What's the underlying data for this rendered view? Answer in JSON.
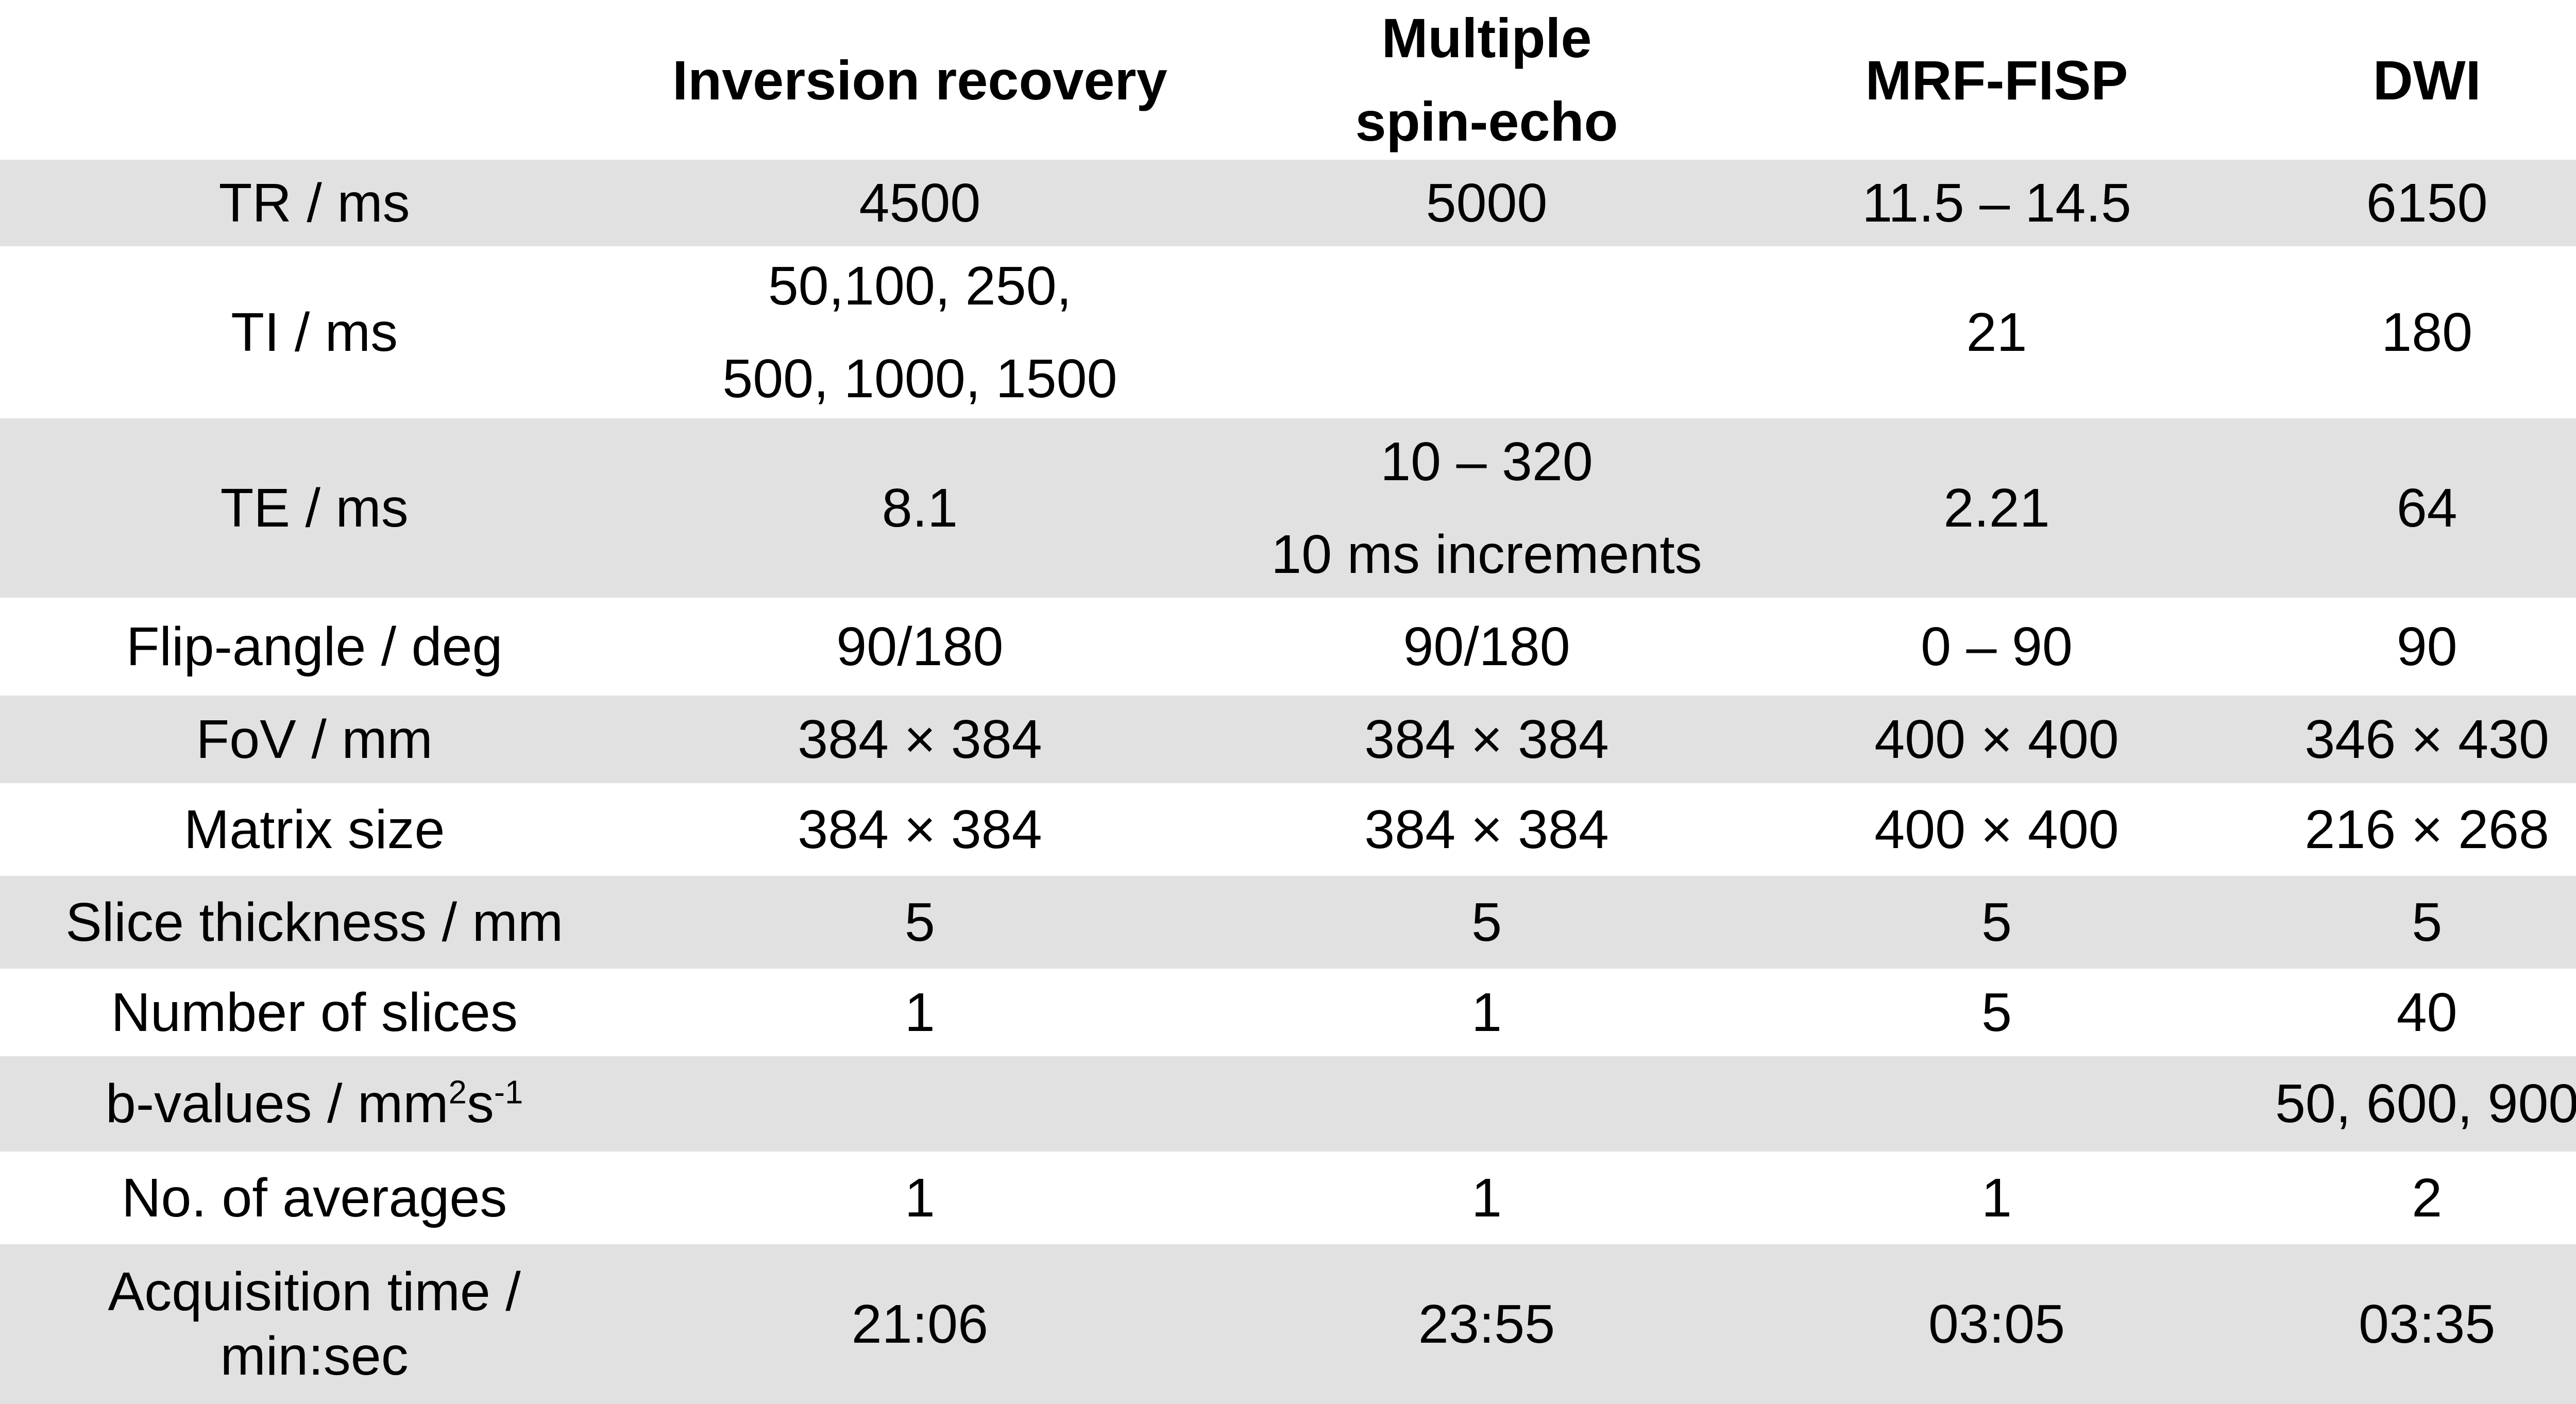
{
  "colors": {
    "band_gray": "#e1e1e1",
    "background": "#ffffff",
    "text": "#000000"
  },
  "header": {
    "col0": "",
    "col1": "Inversion recovery",
    "col2_line1": "Multiple",
    "col2_line2": "spin-echo",
    "col3": "MRF-FISP",
    "col4": "DWI"
  },
  "rows": {
    "tr": {
      "label": "TR / ms",
      "ir": "4500",
      "mse": "5000",
      "mrf": "11.5 – 14.5",
      "dwi": "6150"
    },
    "ti": {
      "label": "TI / ms",
      "ir_line1": "50,100, 250,",
      "ir_line2": "500, 1000, 1500",
      "mse": "",
      "mrf": "21",
      "dwi": "180"
    },
    "te": {
      "label": "TE / ms",
      "ir": "8.1",
      "mse_line1": "10 – 320",
      "mse_line2": "10 ms increments",
      "mrf": "2.21",
      "dwi": "64"
    },
    "flip": {
      "label": "Flip-angle / deg",
      "ir": "90/180",
      "mse": "90/180",
      "mrf": "0 – 90",
      "dwi": "90"
    },
    "fov": {
      "label": "FoV / mm",
      "ir": "384 × 384",
      "mse": "384 × 384",
      "mrf": "400 × 400",
      "dwi": "346 × 430"
    },
    "matrix": {
      "label": "Matrix size",
      "ir": "384 × 384",
      "mse": "384 × 384",
      "mrf": "400 × 400",
      "dwi": "216 × 268"
    },
    "slice": {
      "label": "Slice thickness / mm",
      "ir": "5",
      "mse": "5",
      "mrf": "5",
      "dwi": "5"
    },
    "nslices": {
      "label": "Number of slices",
      "ir": "1",
      "mse": "1",
      "mrf": "5",
      "dwi": "40"
    },
    "bvalues": {
      "label_base": "b-values / mm",
      "label_sup1": "2",
      "label_mid": "s",
      "label_sup2": "-1",
      "ir": "",
      "mse": "",
      "mrf": "",
      "dwi": "50, 600, 900"
    },
    "averages": {
      "label": "No. of averages",
      "ir": "1",
      "mse": "1",
      "mrf": "1",
      "dwi": "2"
    },
    "acq": {
      "label_line1": "Acquisition time /",
      "label_line2": "min:sec",
      "ir": "21:06",
      "mse": "23:55",
      "mrf": "03:05",
      "dwi": "03:35"
    }
  }
}
